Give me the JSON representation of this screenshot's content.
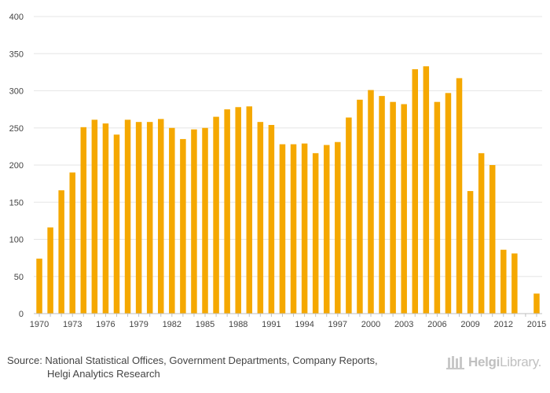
{
  "chart_data": {
    "type": "bar",
    "title": "",
    "xlabel": "",
    "ylabel": "",
    "ylim": [
      0,
      400
    ],
    "yticks": [
      0,
      50,
      100,
      150,
      200,
      250,
      300,
      350,
      400
    ],
    "xtick_labels": [
      "1970",
      "1973",
      "1976",
      "1979",
      "1982",
      "1985",
      "1988",
      "1991",
      "1994",
      "1997",
      "2000",
      "2003",
      "2006",
      "2009",
      "2012",
      "2015"
    ],
    "categories": [
      "1970",
      "1971",
      "1972",
      "1973",
      "1974",
      "1975",
      "1976",
      "1977",
      "1978",
      "1979",
      "1980",
      "1981",
      "1982",
      "1983",
      "1984",
      "1985",
      "1986",
      "1987",
      "1988",
      "1989",
      "1990",
      "1991",
      "1992",
      "1993",
      "1994",
      "1995",
      "1996",
      "1997",
      "1998",
      "1999",
      "2000",
      "2001",
      "2002",
      "2003",
      "2004",
      "2005",
      "2006",
      "2007",
      "2008",
      "2009",
      "2010",
      "2011",
      "2012",
      "2013",
      "2014",
      "2015"
    ],
    "values": [
      74,
      116,
      166,
      190,
      251,
      261,
      256,
      241,
      261,
      258,
      258,
      262,
      250,
      235,
      248,
      250,
      265,
      275,
      278,
      279,
      258,
      254,
      228,
      228,
      229,
      216,
      227,
      231,
      264,
      288,
      301,
      293,
      285,
      282,
      329,
      333,
      285,
      297,
      317,
      165,
      216,
      200,
      86,
      81,
      null,
      27
    ],
    "bar_color": "#f5a800",
    "grid": true
  },
  "footer": {
    "source_line1": "Source: National Statistical Offices, Government Departments, Company Reports,",
    "source_line2": "Helgi Analytics Research"
  },
  "logo": {
    "part1": "Helgi",
    "part2": "Library."
  }
}
